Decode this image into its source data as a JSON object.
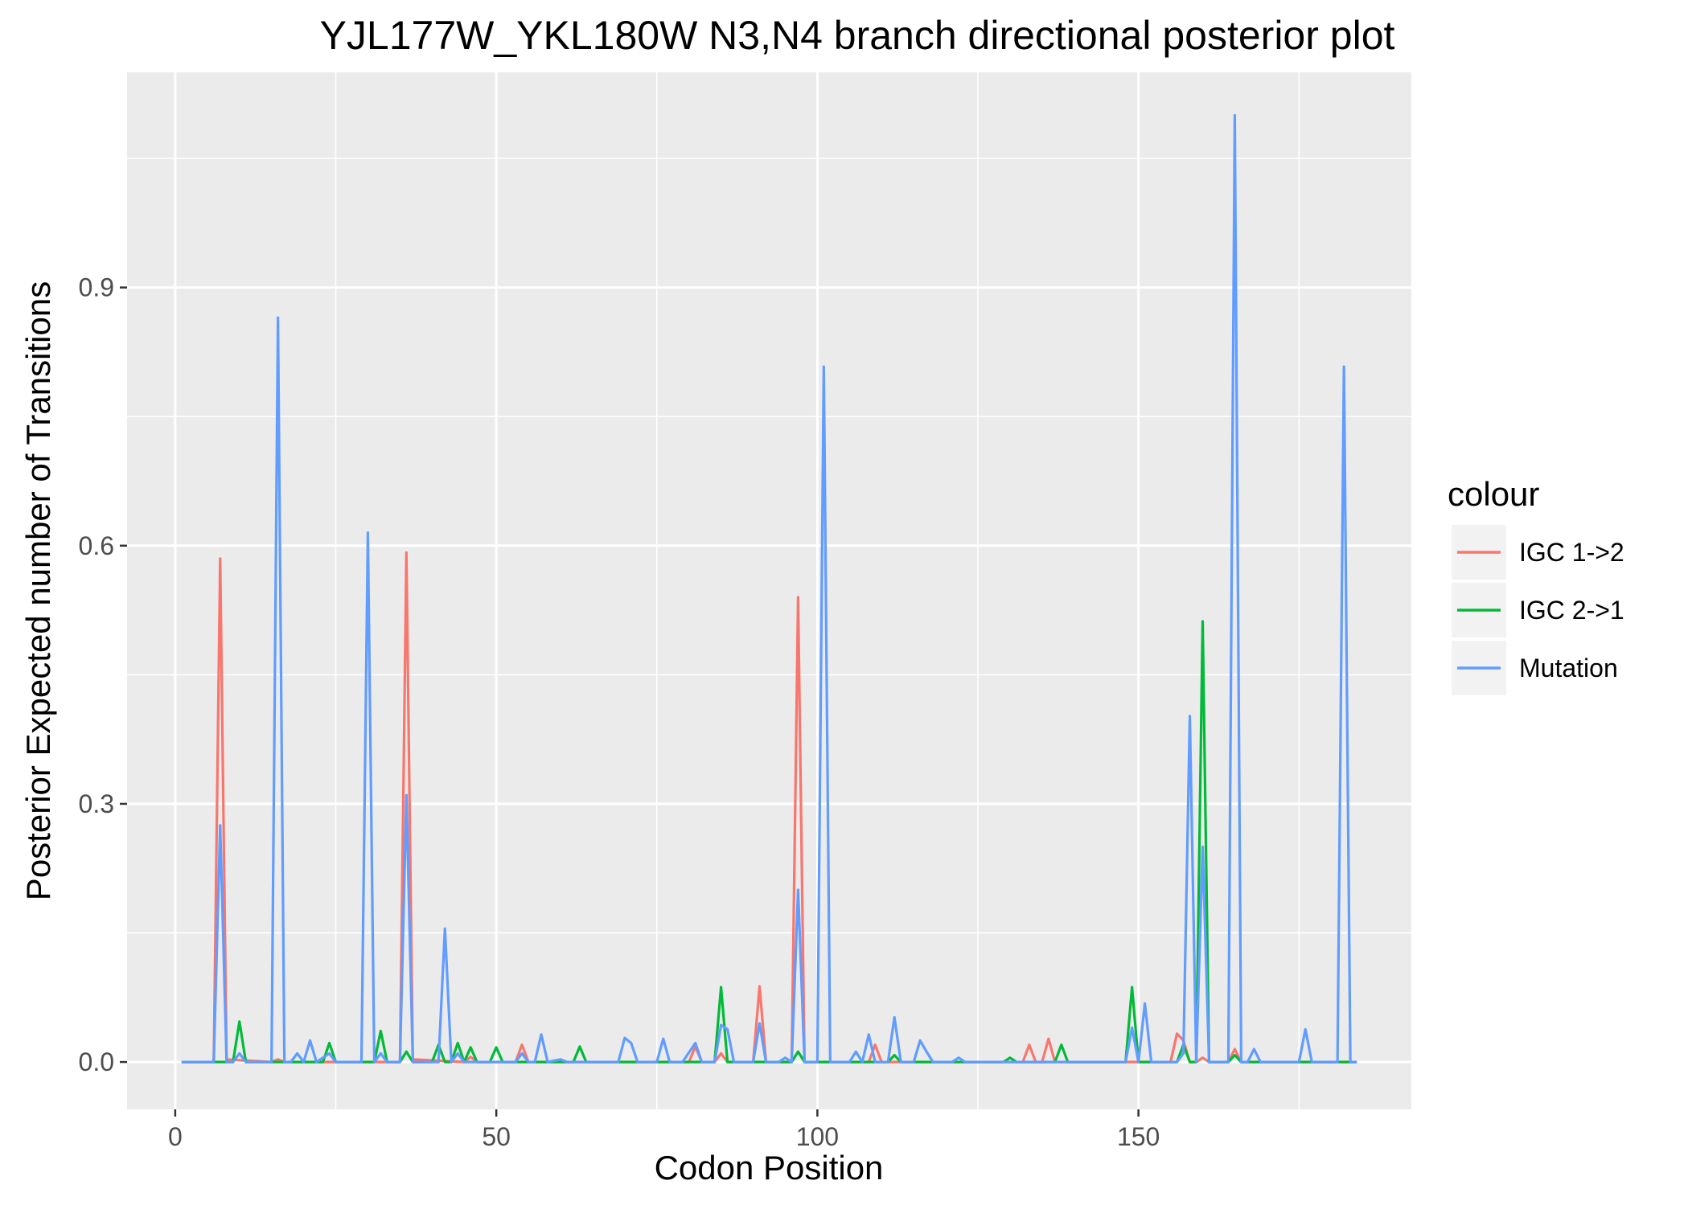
{
  "chart_data": {
    "type": "line",
    "title": "YJL177W_YKL180W N3,N4 branch directional posterior plot",
    "xlabel": "Codon Position",
    "ylabel": "Posterior Expected number of Transitions",
    "xlim": [
      -7.5,
      192.5
    ],
    "ylim": [
      -0.055,
      1.15
    ],
    "x_ticks": [
      0,
      50,
      100,
      150
    ],
    "x_tick_labels": [
      "0",
      "50",
      "100",
      "150"
    ],
    "y_ticks": [
      0.0,
      0.3,
      0.6,
      0.9
    ],
    "y_tick_labels": [
      "0.0",
      "0.3",
      "0.6",
      "0.9"
    ],
    "grid": true,
    "legend": {
      "title": "colour",
      "position": "right"
    },
    "series": [
      {
        "name": "IGC 1->2",
        "color": "#F8766D",
        "points": [
          [
            1,
            0
          ],
          [
            6,
            0
          ],
          [
            7,
            0.585
          ],
          [
            8,
            0.003
          ],
          [
            15,
            0
          ],
          [
            16,
            0.003
          ],
          [
            17,
            0
          ],
          [
            35,
            0
          ],
          [
            36,
            0.592
          ],
          [
            37,
            0.003
          ],
          [
            45,
            0
          ],
          [
            46,
            0.006
          ],
          [
            47,
            0
          ],
          [
            53,
            0
          ],
          [
            54,
            0.02
          ],
          [
            55,
            0
          ],
          [
            80,
            0
          ],
          [
            81,
            0.018
          ],
          [
            82,
            0
          ],
          [
            84,
            0
          ],
          [
            85,
            0.01
          ],
          [
            86,
            0
          ],
          [
            90,
            0
          ],
          [
            91,
            0.088
          ],
          [
            92,
            0
          ],
          [
            96,
            0
          ],
          [
            97,
            0.54
          ],
          [
            98,
            0
          ],
          [
            108,
            0
          ],
          [
            109,
            0.02
          ],
          [
            110,
            0
          ],
          [
            132,
            0
          ],
          [
            133,
            0.02
          ],
          [
            134,
            0
          ],
          [
            135,
            0
          ],
          [
            136,
            0.027
          ],
          [
            137,
            0
          ],
          [
            155,
            0
          ],
          [
            156,
            0.033
          ],
          [
            157,
            0.025
          ],
          [
            158,
            0
          ],
          [
            159,
            0
          ],
          [
            160,
            0.005
          ],
          [
            161,
            0
          ],
          [
            164,
            0
          ],
          [
            165,
            0.015
          ],
          [
            166,
            0
          ],
          [
            184,
            0
          ]
        ]
      },
      {
        "name": "IGC 2->1",
        "color": "#00BA38",
        "points": [
          [
            1,
            0
          ],
          [
            9,
            0
          ],
          [
            10,
            0.047
          ],
          [
            11,
            0
          ],
          [
            23,
            0
          ],
          [
            24,
            0.022
          ],
          [
            25,
            0
          ],
          [
            31,
            0
          ],
          [
            32,
            0.036
          ],
          [
            33,
            0
          ],
          [
            35,
            0
          ],
          [
            36,
            0.012
          ],
          [
            37,
            0
          ],
          [
            40,
            0
          ],
          [
            41,
            0.02
          ],
          [
            42,
            0
          ],
          [
            43,
            0
          ],
          [
            44,
            0.022
          ],
          [
            45,
            0
          ],
          [
            46,
            0.017
          ],
          [
            47,
            0
          ],
          [
            49,
            0
          ],
          [
            50,
            0.017
          ],
          [
            51,
            0
          ],
          [
            62,
            0
          ],
          [
            63,
            0.018
          ],
          [
            64,
            0
          ],
          [
            84,
            0
          ],
          [
            85,
            0.087
          ],
          [
            86,
            0
          ],
          [
            96,
            0
          ],
          [
            97,
            0.012
          ],
          [
            98,
            0
          ],
          [
            111,
            0
          ],
          [
            112,
            0.008
          ],
          [
            113,
            0
          ],
          [
            129,
            0
          ],
          [
            130,
            0.005
          ],
          [
            131,
            0
          ],
          [
            137,
            0
          ],
          [
            138,
            0.02
          ],
          [
            139,
            0
          ],
          [
            148,
            0
          ],
          [
            149,
            0.087
          ],
          [
            150,
            0
          ],
          [
            156,
            0
          ],
          [
            157,
            0.02
          ],
          [
            158,
            0
          ],
          [
            159,
            0
          ],
          [
            160,
            0.512
          ],
          [
            161,
            0
          ],
          [
            164,
            0
          ],
          [
            165,
            0.008
          ],
          [
            166,
            0
          ],
          [
            184,
            0
          ]
        ]
      },
      {
        "name": "Mutation",
        "color": "#619CFF",
        "points": [
          [
            1,
            0
          ],
          [
            6,
            0
          ],
          [
            7,
            0.275
          ],
          [
            8,
            0
          ],
          [
            9,
            0
          ],
          [
            10,
            0.01
          ],
          [
            11,
            0
          ],
          [
            15,
            0
          ],
          [
            16,
            0.865
          ],
          [
            17,
            0
          ],
          [
            18,
            0
          ],
          [
            19,
            0.01
          ],
          [
            20,
            0
          ],
          [
            21,
            0.025
          ],
          [
            22,
            0
          ],
          [
            24,
            0.01
          ],
          [
            25,
            0
          ],
          [
            29,
            0
          ],
          [
            30,
            0.615
          ],
          [
            31,
            0
          ],
          [
            32,
            0.01
          ],
          [
            33,
            0
          ],
          [
            35,
            0
          ],
          [
            36,
            0.31
          ],
          [
            37,
            0
          ],
          [
            41,
            0
          ],
          [
            42,
            0.155
          ],
          [
            43,
            0
          ],
          [
            44,
            0.01
          ],
          [
            45,
            0
          ],
          [
            53,
            0
          ],
          [
            54,
            0.01
          ],
          [
            55,
            0
          ],
          [
            56,
            0
          ],
          [
            57,
            0.032
          ],
          [
            58,
            0
          ],
          [
            60,
            0.003
          ],
          [
            61,
            0
          ],
          [
            69,
            0
          ],
          [
            70,
            0.028
          ],
          [
            71,
            0.022
          ],
          [
            72,
            0
          ],
          [
            75,
            0
          ],
          [
            76,
            0.027
          ],
          [
            77,
            0
          ],
          [
            79,
            0
          ],
          [
            81,
            0.022
          ],
          [
            82,
            0
          ],
          [
            84,
            0
          ],
          [
            85,
            0.043
          ],
          [
            86,
            0.038
          ],
          [
            87,
            0
          ],
          [
            90,
            0
          ],
          [
            91,
            0.045
          ],
          [
            92,
            0
          ],
          [
            94,
            0
          ],
          [
            95,
            0.005
          ],
          [
            96,
            0
          ],
          [
            97,
            0.2
          ],
          [
            98,
            0
          ],
          [
            100,
            0
          ],
          [
            101,
            0.808
          ],
          [
            102,
            0
          ],
          [
            105,
            0
          ],
          [
            106,
            0.012
          ],
          [
            107,
            0
          ],
          [
            108,
            0.032
          ],
          [
            109,
            0
          ],
          [
            111,
            0
          ],
          [
            112,
            0.052
          ],
          [
            113,
            0
          ],
          [
            115,
            0
          ],
          [
            116,
            0.025
          ],
          [
            117,
            0.012
          ],
          [
            118,
            0
          ],
          [
            121,
            0
          ],
          [
            122,
            0.005
          ],
          [
            123,
            0
          ],
          [
            148,
            0
          ],
          [
            149,
            0.04
          ],
          [
            150,
            0
          ],
          [
            151,
            0.068
          ],
          [
            152,
            0
          ],
          [
            156,
            0
          ],
          [
            157,
            0.01
          ],
          [
            158,
            0.402
          ],
          [
            159,
            0
          ],
          [
            160,
            0.25
          ],
          [
            161,
            0
          ],
          [
            164,
            0
          ],
          [
            165,
            1.1
          ],
          [
            166,
            0
          ],
          [
            167,
            0
          ],
          [
            168,
            0.015
          ],
          [
            169,
            0
          ],
          [
            175,
            0
          ],
          [
            176,
            0.038
          ],
          [
            177,
            0
          ],
          [
            181,
            0
          ],
          [
            182,
            0.808
          ],
          [
            183,
            0
          ],
          [
            184,
            0
          ]
        ]
      }
    ]
  }
}
